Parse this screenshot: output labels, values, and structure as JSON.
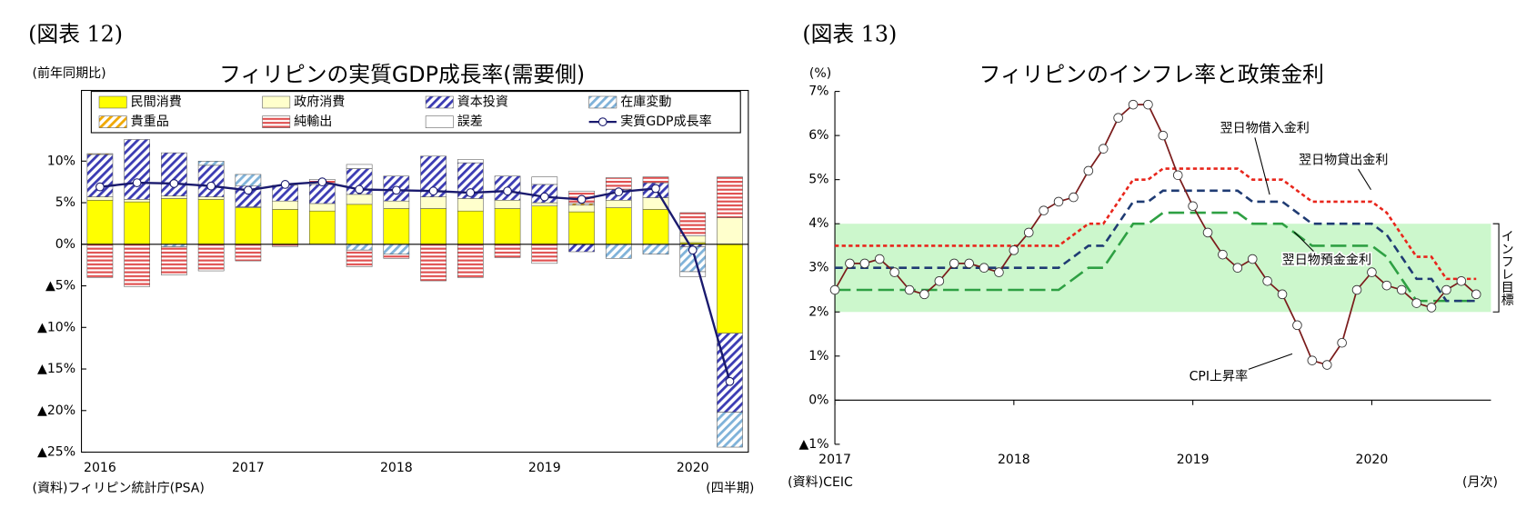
{
  "chart_data": [
    {
      "type": "bar",
      "stacked": true,
      "figure_label": "(図表 12)",
      "title": "フィリピンの実質GDP成長率(需要側)",
      "y_unit": "(前年同期比)",
      "source": "(資料)フィリピン統計庁(PSA)",
      "x_unit": "(四半期)",
      "categories": [
        "2016",
        null,
        null,
        null,
        "2017",
        null,
        null,
        null,
        "2018",
        null,
        null,
        null,
        "2019",
        null,
        null,
        null,
        "2020",
        null
      ],
      "series": [
        {
          "name": "民間消費",
          "color": "#ffff00",
          "pattern": "solid",
          "values": [
            5.3,
            5.1,
            5.5,
            5.4,
            4.4,
            4.2,
            4.0,
            4.8,
            4.3,
            4.3,
            4.0,
            4.3,
            4.6,
            3.9,
            4.4,
            4.2,
            0.2,
            -10.7
          ]
        },
        {
          "name": "政府消費",
          "color": "#ffffcc",
          "pattern": "solid",
          "values": [
            0.4,
            0.3,
            0.3,
            0.3,
            0.1,
            1.0,
            0.9,
            1.2,
            0.9,
            1.4,
            1.5,
            1.0,
            0.4,
            0.8,
            0.9,
            1.4,
            0.8,
            3.2
          ]
        },
        {
          "name": "資本投資",
          "color": "#3b3bb3",
          "pattern": "diagonal",
          "values": [
            5.1,
            7.2,
            5.2,
            3.8,
            2.5,
            1.9,
            2.3,
            3.1,
            3.0,
            4.9,
            4.3,
            2.9,
            2.2,
            -0.9,
            1.3,
            1.8,
            -0.3,
            -9.5
          ]
        },
        {
          "name": "在庫変動",
          "color": "#7fb2d9",
          "pattern": "diagonal",
          "values": [
            0.0,
            0.0,
            -0.3,
            0.5,
            1.4,
            0.0,
            0.0,
            -0.7,
            -1.2,
            0.0,
            0.0,
            0.0,
            0.0,
            0.0,
            -1.7,
            -1.2,
            -3.0,
            -4.2
          ]
        },
        {
          "name": "貴重品",
          "color": "#f0a800",
          "pattern": "diagonal",
          "values": [
            0.1,
            0.0,
            0.0,
            0.0,
            0.0,
            0.0,
            0.0,
            0.0,
            0.0,
            0.0,
            0.0,
            0.0,
            0.0,
            0.2,
            0.0,
            0.0,
            0.0,
            0.0
          ]
        },
        {
          "name": "純輸出",
          "color": "#e05050",
          "pattern": "horizontal",
          "values": [
            -4.0,
            -5.1,
            -3.4,
            -3.2,
            -2.0,
            -0.3,
            0.6,
            -2.0,
            -0.5,
            -4.4,
            -4.0,
            -1.6,
            -2.3,
            1.5,
            1.4,
            0.7,
            2.8,
            4.9
          ]
        },
        {
          "name": "誤差",
          "color": "#ffffff",
          "pattern": "solid",
          "values": [
            0.0,
            0.0,
            0.0,
            0.0,
            0.0,
            0.0,
            0.0,
            0.5,
            0.0,
            0.0,
            0.4,
            0.0,
            0.9,
            0.0,
            0.0,
            0.0,
            -0.6,
            0.0
          ]
        },
        {
          "name": "実質GDP成長率",
          "type": "line",
          "marker": "circle",
          "color": "#1a1a6e",
          "values": [
            6.9,
            7.4,
            7.3,
            7.0,
            6.5,
            7.2,
            7.5,
            6.6,
            6.5,
            6.4,
            6.2,
            6.4,
            5.7,
            5.4,
            6.3,
            6.7,
            -0.7,
            -16.5
          ]
        }
      ],
      "ylim": [
        -25,
        18.5
      ],
      "yticks": [
        {
          "value": 10,
          "label": "10%"
        },
        {
          "value": 5,
          "label": "5%"
        },
        {
          "value": 0,
          "label": "0%"
        },
        {
          "value": -5,
          "label": "▲5%"
        },
        {
          "value": -10,
          "label": "▲10%"
        },
        {
          "value": -15,
          "label": "▲15%"
        },
        {
          "value": -20,
          "label": "▲20%"
        },
        {
          "value": -25,
          "label": "▲25%"
        }
      ]
    },
    {
      "type": "line",
      "figure_label": "(図表 13)",
      "title": "フィリピンのインフレ率と政策金利",
      "y_unit": "(%)",
      "source": "(資料)CEIC",
      "x_unit": "(月次)",
      "categories": [
        "2017",
        null,
        null,
        null,
        null,
        null,
        null,
        null,
        null,
        null,
        null,
        null,
        "2018",
        null,
        null,
        null,
        null,
        null,
        null,
        null,
        null,
        null,
        null,
        null,
        "2019",
        null,
        null,
        null,
        null,
        null,
        null,
        null,
        null,
        null,
        null,
        null,
        "2020",
        null,
        null,
        null,
        null,
        null,
        null,
        null
      ],
      "series": [
        {
          "name": "CPI上昇率",
          "color": "#7b1c1c",
          "dash": "solid",
          "marker": "circle",
          "values": [
            2.5,
            3.1,
            3.1,
            3.2,
            2.9,
            2.5,
            2.4,
            2.7,
            3.1,
            3.1,
            3.0,
            2.9,
            3.4,
            3.8,
            4.3,
            4.5,
            4.6,
            5.2,
            5.7,
            6.4,
            6.7,
            6.7,
            6.0,
            5.1,
            4.4,
            3.8,
            3.3,
            3.0,
            3.2,
            2.7,
            2.4,
            1.7,
            0.9,
            0.8,
            1.3,
            2.5,
            2.9,
            2.6,
            2.5,
            2.2,
            2.1,
            2.5,
            2.7,
            2.4
          ]
        },
        {
          "name": "翌日物借入金利",
          "color": "#1f3b73",
          "dash": "dashed",
          "values": [
            3.0,
            3.0,
            3.0,
            3.0,
            3.0,
            3.0,
            3.0,
            3.0,
            3.0,
            3.0,
            3.0,
            3.0,
            3.0,
            3.0,
            3.0,
            3.0,
            3.25,
            3.5,
            3.5,
            4.0,
            4.5,
            4.5,
            4.75,
            4.75,
            4.75,
            4.75,
            4.75,
            4.75,
            4.5,
            4.5,
            4.5,
            4.25,
            4.0,
            4.0,
            4.0,
            4.0,
            4.0,
            3.75,
            3.25,
            2.75,
            2.75,
            2.25,
            2.25,
            2.25
          ]
        },
        {
          "name": "翌日物貸出金利",
          "color": "#e8261c",
          "dash": "dotted",
          "values": [
            3.5,
            3.5,
            3.5,
            3.5,
            3.5,
            3.5,
            3.5,
            3.5,
            3.5,
            3.5,
            3.5,
            3.5,
            3.5,
            3.5,
            3.5,
            3.5,
            3.75,
            4.0,
            4.0,
            4.5,
            5.0,
            5.0,
            5.25,
            5.25,
            5.25,
            5.25,
            5.25,
            5.25,
            5.0,
            5.0,
            5.0,
            4.75,
            4.5,
            4.5,
            4.5,
            4.5,
            4.5,
            4.25,
            3.75,
            3.25,
            3.25,
            2.75,
            2.75,
            2.75
          ]
        },
        {
          "name": "翌日物預金金利",
          "color": "#2ea043",
          "dash": "longdash",
          "values": [
            2.5,
            2.5,
            2.5,
            2.5,
            2.5,
            2.5,
            2.5,
            2.5,
            2.5,
            2.5,
            2.5,
            2.5,
            2.5,
            2.5,
            2.5,
            2.5,
            2.75,
            3.0,
            3.0,
            3.5,
            4.0,
            4.0,
            4.25,
            4.25,
            4.25,
            4.25,
            4.25,
            4.25,
            4.0,
            4.0,
            4.0,
            3.75,
            3.5,
            3.5,
            3.5,
            3.5,
            3.5,
            3.25,
            2.75,
            2.25,
            2.25,
            2.25,
            2.25,
            2.25
          ]
        }
      ],
      "target_band": {
        "label": "インフレ目標",
        "range": [
          2,
          4
        ],
        "color": "#ccf7cc"
      },
      "ylim": [
        -1,
        7
      ],
      "yticks": [
        {
          "value": 7,
          "label": "7%"
        },
        {
          "value": 6,
          "label": "6%"
        },
        {
          "value": 5,
          "label": "5%"
        },
        {
          "value": 4,
          "label": "4%"
        },
        {
          "value": 3,
          "label": "3%"
        },
        {
          "value": 2,
          "label": "2%"
        },
        {
          "value": 1,
          "label": "1%"
        },
        {
          "value": 0,
          "label": "0%"
        },
        {
          "value": -1,
          "label": "▲1%"
        }
      ]
    }
  ]
}
